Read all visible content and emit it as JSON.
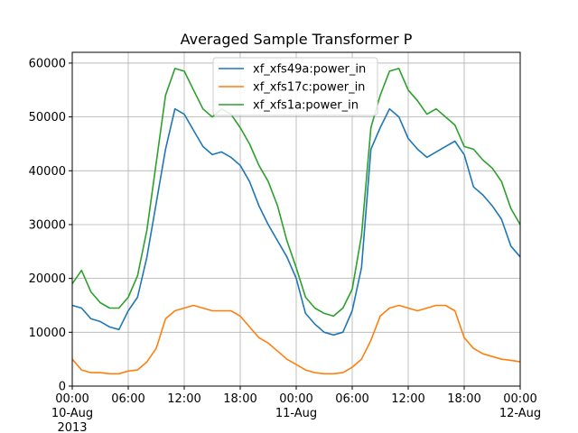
{
  "chart_data": {
    "type": "line",
    "title": "Averaged Sample Transformer P",
    "xlabel": "",
    "ylabel": "",
    "x_unit": "hours since 00:00 10-Aug 2013",
    "xlim": [
      0,
      48
    ],
    "ylim": [
      0,
      62000
    ],
    "grid": true,
    "legend_position": "upper center",
    "y_ticks": [
      0,
      10000,
      20000,
      30000,
      40000,
      50000,
      60000
    ],
    "x_ticks": [
      {
        "x": 0,
        "label": [
          "00:00",
          "10-Aug",
          "2013"
        ]
      },
      {
        "x": 6,
        "label": [
          "06:00"
        ]
      },
      {
        "x": 12,
        "label": [
          "12:00"
        ]
      },
      {
        "x": 18,
        "label": [
          "18:00"
        ]
      },
      {
        "x": 24,
        "label": [
          "00:00",
          "11-Aug"
        ]
      },
      {
        "x": 30,
        "label": [
          "06:00"
        ]
      },
      {
        "x": 36,
        "label": [
          "12:00"
        ]
      },
      {
        "x": 42,
        "label": [
          "18:00"
        ]
      },
      {
        "x": 48,
        "label": [
          "00:00",
          "12-Aug"
        ]
      }
    ],
    "x": [
      0,
      1,
      2,
      3,
      4,
      5,
      6,
      7,
      8,
      9,
      10,
      11,
      12,
      13,
      14,
      15,
      16,
      17,
      18,
      19,
      20,
      21,
      22,
      23,
      24,
      25,
      26,
      27,
      28,
      29,
      30,
      31,
      32,
      33,
      34,
      35,
      36,
      37,
      38,
      39,
      40,
      41,
      42,
      43,
      44,
      45,
      46,
      47,
      48
    ],
    "series": [
      {
        "name": "xf_xfs49a:power_in",
        "color": "#1f77b4",
        "values": [
          15000,
          14500,
          12500,
          12000,
          11000,
          10500,
          14000,
          16500,
          24000,
          34000,
          44000,
          51500,
          50500,
          47500,
          44500,
          43000,
          43500,
          42500,
          41000,
          38000,
          33500,
          30000,
          27000,
          24000,
          20000,
          13500,
          11500,
          10000,
          9500,
          10000,
          14000,
          22000,
          44000,
          48000,
          51500,
          50000,
          46000,
          44000,
          42500,
          43500,
          44500,
          45500,
          43000,
          37000,
          35500,
          33500,
          31000,
          26000,
          24000
        ]
      },
      {
        "name": "xf_xfs17c:power_in",
        "color": "#ff7f0e",
        "values": [
          5000,
          3000,
          2500,
          2500,
          2300,
          2300,
          2800,
          3000,
          4500,
          7000,
          12500,
          14000,
          14500,
          15000,
          14500,
          14000,
          14000,
          14000,
          13000,
          11000,
          9000,
          8000,
          6500,
          5000,
          4000,
          3000,
          2500,
          2300,
          2300,
          2500,
          3500,
          5000,
          8500,
          13000,
          14500,
          15000,
          14500,
          14000,
          14500,
          15000,
          15000,
          14000,
          9000,
          7000,
          6000,
          5500,
          5000,
          4800,
          4500
        ]
      },
      {
        "name": "xf_xfs1a:power_in",
        "color": "#2ca02c",
        "values": [
          19000,
          21500,
          17500,
          15500,
          14500,
          14500,
          16500,
          20500,
          29000,
          41500,
          54000,
          59000,
          58500,
          55000,
          51500,
          50000,
          51500,
          50500,
          48000,
          45000,
          41000,
          38000,
          33500,
          27000,
          22000,
          16500,
          14500,
          13500,
          13000,
          14500,
          18000,
          28000,
          48000,
          54000,
          58500,
          59000,
          55000,
          53000,
          50500,
          51500,
          50000,
          48500,
          44500,
          44000,
          42000,
          40500,
          38000,
          33000,
          30000
        ]
      }
    ]
  }
}
